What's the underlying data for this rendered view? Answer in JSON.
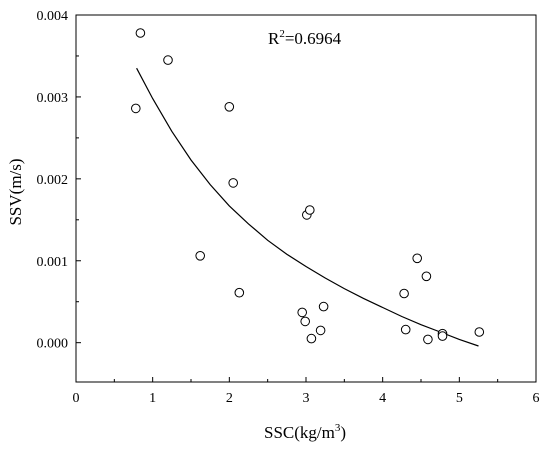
{
  "chart_data": {
    "type": "scatter",
    "xlabel": {
      "main": "SSC(kg/m",
      "sup": "3",
      "tail": ")"
    },
    "ylabel": "SSV(m/s)",
    "annotation": {
      "main": "R",
      "sup": "2",
      "tail": "=0.6964"
    },
    "xlim": [
      0,
      6
    ],
    "ylim": [
      -0.00048,
      0.004
    ],
    "x_ticks": [
      0,
      1,
      2,
      3,
      4,
      5,
      6
    ],
    "x_tick_labels": [
      "0",
      "1",
      "2",
      "3",
      "4",
      "5",
      "6"
    ],
    "y_ticks": [
      0.0,
      0.001,
      0.002,
      0.003,
      0.004
    ],
    "y_tick_labels": [
      "0.000",
      "0.001",
      "0.002",
      "0.003",
      "0.004"
    ],
    "grid": false,
    "series": [
      {
        "kind": "points",
        "x": [
          0.78,
          0.84,
          1.2,
          1.62,
          2.0,
          2.05,
          2.13,
          2.95,
          2.99,
          3.01,
          3.05,
          3.07,
          3.19,
          3.23,
          4.28,
          4.3,
          4.45,
          4.57,
          4.59,
          4.78,
          4.78,
          5.26
        ],
        "y": [
          0.00286,
          0.00378,
          0.00345,
          0.00106,
          0.00288,
          0.00195,
          0.00061,
          0.00037,
          0.00026,
          0.00156,
          0.00162,
          5e-05,
          0.00015,
          0.00044,
          0.0006,
          0.00016,
          0.00103,
          0.00081,
          4e-05,
          0.00011,
          8e-05,
          0.00013
        ]
      },
      {
        "kind": "fit_line",
        "x": [
          0.79,
          1.0,
          1.25,
          1.5,
          1.75,
          2.0,
          2.25,
          2.5,
          2.75,
          3.0,
          3.25,
          3.5,
          3.75,
          4.0,
          4.25,
          4.5,
          4.75,
          5.0,
          5.25
        ],
        "y": [
          0.00335,
          0.00298,
          0.00258,
          0.00223,
          0.00193,
          0.00167,
          0.00145,
          0.00125,
          0.00108,
          0.00093,
          0.00079,
          0.00066,
          0.00054,
          0.00043,
          0.00032,
          0.00022,
          0.00013,
          4e-05,
          -4e-05
        ]
      }
    ]
  }
}
